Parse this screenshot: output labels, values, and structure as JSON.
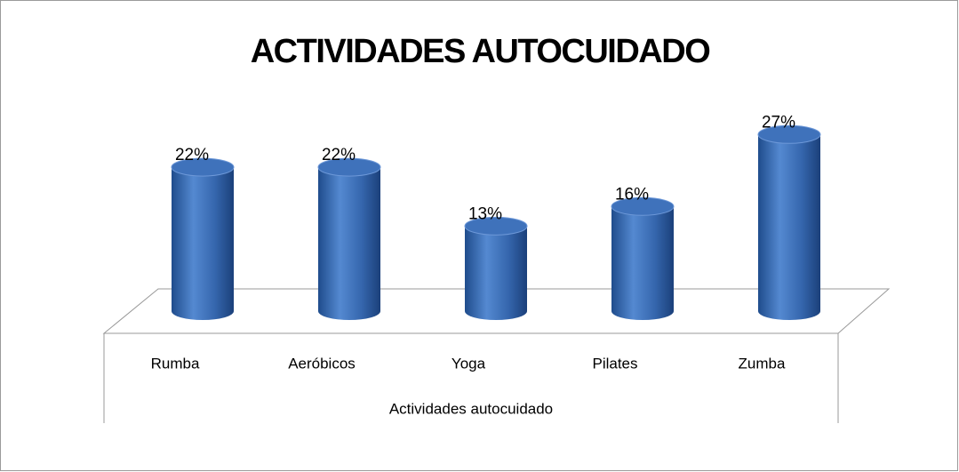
{
  "chart_data": {
    "type": "bar3d",
    "title": "ACTIVIDADES AUTOCUIDADO",
    "categories": [
      "Rumba",
      "Aeróbicos",
      "Yoga",
      "Pilates",
      "Zumba"
    ],
    "values": [
      22,
      22,
      13,
      16,
      27
    ],
    "value_labels": [
      "22%",
      "22%",
      "13%",
      "16%",
      "27%"
    ],
    "x_label": "Actividades autocuidado",
    "color": "#3a6db5"
  }
}
